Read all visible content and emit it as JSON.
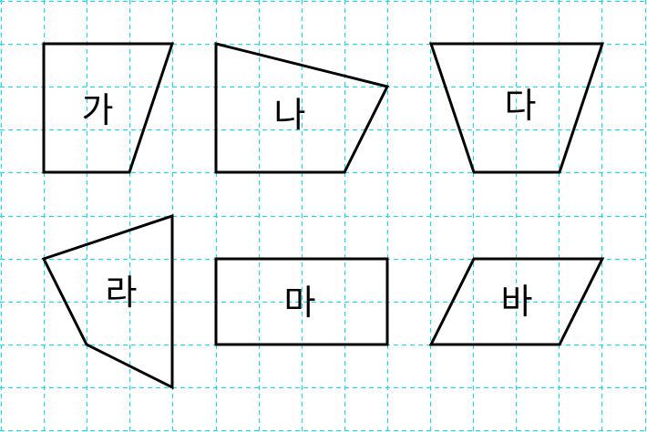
{
  "shapes": [
    {
      "id": "ga",
      "label": "가"
    },
    {
      "id": "na",
      "label": "나"
    },
    {
      "id": "da",
      "label": "다"
    },
    {
      "id": "ra",
      "label": "라"
    },
    {
      "id": "ma",
      "label": "마"
    },
    {
      "id": "ba",
      "label": "바"
    }
  ]
}
